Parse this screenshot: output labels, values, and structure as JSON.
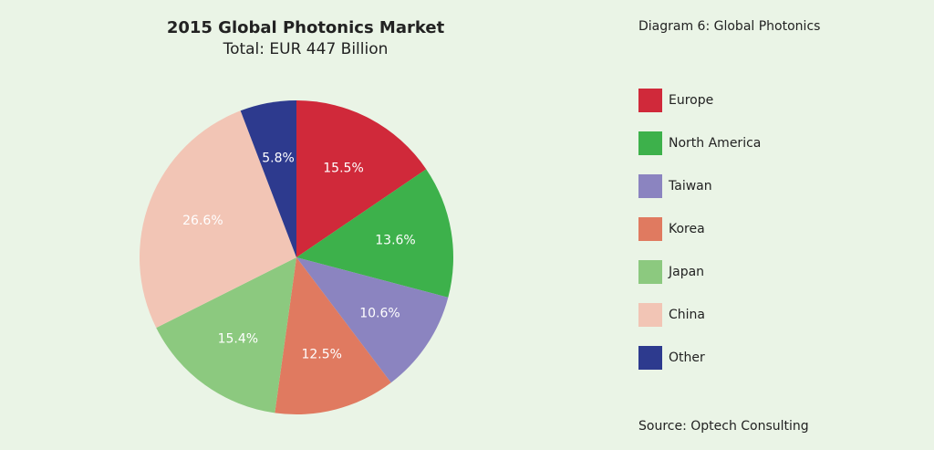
{
  "chart_data": {
    "type": "pie",
    "title": "2015 Global Photonics Market",
    "subtitle": "Total: EUR 447 Billion",
    "caption": "Diagram 6: Global Photonics",
    "source": "Source: Optech Consulting",
    "categories": [
      "Europe",
      "North America",
      "Taiwan",
      "Korea",
      "Japan",
      "China",
      "Other"
    ],
    "values": [
      15.5,
      13.6,
      10.6,
      12.5,
      15.4,
      26.6,
      5.8
    ],
    "value_labels": [
      "15.5%",
      "13.6%",
      "10.6%",
      "12.5%",
      "15.4%",
      "26.6%",
      "5.8%"
    ],
    "colors": [
      "#d0293a",
      "#3db14b",
      "#8b84c0",
      "#e07a60",
      "#8cc97f",
      "#f2c5b5",
      "#2d3a8e"
    ],
    "legend": "right"
  }
}
